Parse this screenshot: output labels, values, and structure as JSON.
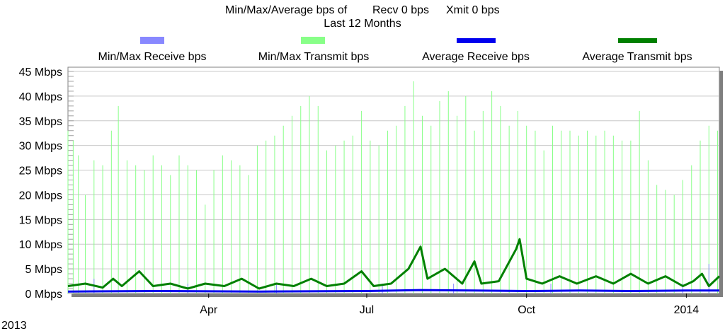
{
  "chart_data": {
    "type": "line",
    "title_line1_prefix": "Min/Max/Average bps of",
    "title_line1_recv": "Recv 0 bps",
    "title_line1_xmit": "Xmit 0 bps",
    "title_line2": "Last 12 Months",
    "legend": [
      {
        "label": "Min/Max Receive bps",
        "color": "#8888ff"
      },
      {
        "label": "Min/Max Transmit bps",
        "color": "#88ff88"
      },
      {
        "label": "Average Receive bps",
        "color": "#0000ee"
      },
      {
        "label": "Average Transmit bps",
        "color": "#008000"
      }
    ],
    "y_tick_labels": [
      "0 Mbps",
      "5 Mbps",
      "10 Mbps",
      "15 Mbps",
      "20 Mbps",
      "25 Mbps",
      "30 Mbps",
      "35 Mbps",
      "40 Mbps",
      "45 Mbps"
    ],
    "y_ticks": [
      0,
      5,
      10,
      15,
      20,
      25,
      30,
      35,
      40,
      45
    ],
    "ylim": [
      0,
      45
    ],
    "y_unit": "Mbps",
    "xlim": [
      "2013-01-10",
      "2014-01-20"
    ],
    "x_ticks": [
      {
        "date": "2013-04-01",
        "label": "Apr"
      },
      {
        "date": "2013-07-01",
        "label": "Jul"
      },
      {
        "date": "2013-10-01",
        "label": "Oct"
      },
      {
        "date": "2014-01-01",
        "label": "2014"
      }
    ],
    "year_label": "2013",
    "grid": "horizontal",
    "legend_placement": "top",
    "series": [
      {
        "name": "Min/Max Transmit bps",
        "style": "spikes",
        "color": "#88ff88",
        "points": [
          [
            "2013-01-10",
            33
          ],
          [
            "2013-01-13",
            31
          ],
          [
            "2013-01-16",
            28
          ],
          [
            "2013-01-20",
            20
          ],
          [
            "2013-01-25",
            27
          ],
          [
            "2013-01-30",
            26
          ],
          [
            "2013-02-04",
            33
          ],
          [
            "2013-02-08",
            38
          ],
          [
            "2013-02-13",
            27
          ],
          [
            "2013-02-18",
            26
          ],
          [
            "2013-02-23",
            25
          ],
          [
            "2013-02-28",
            28
          ],
          [
            "2013-03-05",
            26
          ],
          [
            "2013-03-10",
            24
          ],
          [
            "2013-03-15",
            28
          ],
          [
            "2013-03-20",
            26
          ],
          [
            "2013-03-25",
            25
          ],
          [
            "2013-03-30",
            18
          ],
          [
            "2013-04-04",
            25
          ],
          [
            "2013-04-09",
            28
          ],
          [
            "2013-04-14",
            27
          ],
          [
            "2013-04-19",
            26
          ],
          [
            "2013-04-24",
            24
          ],
          [
            "2013-04-29",
            30
          ],
          [
            "2013-05-04",
            31
          ],
          [
            "2013-05-09",
            32
          ],
          [
            "2013-05-14",
            34
          ],
          [
            "2013-05-19",
            36
          ],
          [
            "2013-05-24",
            38
          ],
          [
            "2013-05-29",
            40
          ],
          [
            "2013-06-03",
            38
          ],
          [
            "2013-06-08",
            29
          ],
          [
            "2013-06-13",
            30
          ],
          [
            "2013-06-18",
            31
          ],
          [
            "2013-06-23",
            32
          ],
          [
            "2013-06-28",
            37
          ],
          [
            "2013-07-03",
            31
          ],
          [
            "2013-07-08",
            30
          ],
          [
            "2013-07-13",
            33
          ],
          [
            "2013-07-18",
            34
          ],
          [
            "2013-07-23",
            38
          ],
          [
            "2013-07-28",
            43
          ],
          [
            "2013-08-02",
            36
          ],
          [
            "2013-08-07",
            34
          ],
          [
            "2013-08-12",
            39
          ],
          [
            "2013-08-17",
            41
          ],
          [
            "2013-08-22",
            36
          ],
          [
            "2013-08-27",
            40
          ],
          [
            "2013-09-01",
            33
          ],
          [
            "2013-09-06",
            37
          ],
          [
            "2013-09-11",
            41
          ],
          [
            "2013-09-16",
            38
          ],
          [
            "2013-09-21",
            34
          ],
          [
            "2013-09-26",
            37
          ],
          [
            "2013-10-01",
            34
          ],
          [
            "2013-10-06",
            33
          ],
          [
            "2013-10-11",
            29
          ],
          [
            "2013-10-16",
            34
          ],
          [
            "2013-10-21",
            33
          ],
          [
            "2013-10-26",
            33
          ],
          [
            "2013-10-31",
            32
          ],
          [
            "2013-11-05",
            33
          ],
          [
            "2013-11-10",
            32
          ],
          [
            "2013-11-15",
            33
          ],
          [
            "2013-11-20",
            32
          ],
          [
            "2013-11-25",
            31
          ],
          [
            "2013-11-30",
            31
          ],
          [
            "2013-12-05",
            37
          ],
          [
            "2013-12-10",
            27
          ],
          [
            "2013-12-15",
            22
          ],
          [
            "2013-12-20",
            21
          ],
          [
            "2013-12-25",
            20
          ],
          [
            "2013-12-30",
            23
          ],
          [
            "2014-01-04",
            26
          ],
          [
            "2014-01-09",
            31
          ],
          [
            "2014-01-14",
            34
          ],
          [
            "2014-01-19",
            33
          ]
        ]
      },
      {
        "name": "Min/Max Receive bps",
        "style": "spikes",
        "color": "#8888ff",
        "points": [
          [
            "2013-01-25",
            3
          ],
          [
            "2013-03-20",
            2
          ],
          [
            "2013-05-10",
            2
          ],
          [
            "2013-07-10",
            2
          ],
          [
            "2013-08-20",
            2
          ],
          [
            "2013-10-15",
            2
          ],
          [
            "2013-12-30",
            2
          ],
          [
            "2014-01-14",
            6
          ]
        ]
      },
      {
        "name": "Average Transmit bps",
        "style": "line",
        "color": "#008000",
        "points": [
          [
            "2013-01-10",
            1.5
          ],
          [
            "2013-01-20",
            2
          ],
          [
            "2013-01-30",
            1.2
          ],
          [
            "2013-02-05",
            3
          ],
          [
            "2013-02-10",
            1.5
          ],
          [
            "2013-02-20",
            4.5
          ],
          [
            "2013-02-28",
            1.5
          ],
          [
            "2013-03-10",
            2
          ],
          [
            "2013-03-20",
            1
          ],
          [
            "2013-03-30",
            2
          ],
          [
            "2013-04-10",
            1.5
          ],
          [
            "2013-04-20",
            3
          ],
          [
            "2013-04-30",
            1
          ],
          [
            "2013-05-10",
            2
          ],
          [
            "2013-05-20",
            1.5
          ],
          [
            "2013-05-30",
            3
          ],
          [
            "2013-06-08",
            1.5
          ],
          [
            "2013-06-18",
            2
          ],
          [
            "2013-06-28",
            4.5
          ],
          [
            "2013-07-05",
            1.5
          ],
          [
            "2013-07-15",
            2
          ],
          [
            "2013-07-25",
            5
          ],
          [
            "2013-08-01",
            9.5
          ],
          [
            "2013-08-05",
            3
          ],
          [
            "2013-08-15",
            5
          ],
          [
            "2013-08-25",
            2
          ],
          [
            "2013-09-01",
            6.5
          ],
          [
            "2013-09-05",
            2
          ],
          [
            "2013-09-15",
            2.5
          ],
          [
            "2013-09-25",
            9
          ],
          [
            "2013-09-27",
            11
          ],
          [
            "2013-10-01",
            3
          ],
          [
            "2013-10-10",
            2
          ],
          [
            "2013-10-20",
            3.5
          ],
          [
            "2013-10-30",
            2
          ],
          [
            "2013-11-10",
            3.5
          ],
          [
            "2013-11-20",
            2
          ],
          [
            "2013-11-30",
            4
          ],
          [
            "2013-12-10",
            2
          ],
          [
            "2013-12-20",
            3.5
          ],
          [
            "2013-12-30",
            1.5
          ],
          [
            "2014-01-05",
            2.5
          ],
          [
            "2014-01-10",
            4
          ],
          [
            "2014-01-14",
            1.5
          ],
          [
            "2014-01-20",
            3.5
          ]
        ]
      },
      {
        "name": "Average Receive bps",
        "style": "line",
        "color": "#0000ee",
        "points": [
          [
            "2013-01-10",
            0.4
          ],
          [
            "2013-03-01",
            0.5
          ],
          [
            "2013-05-01",
            0.4
          ],
          [
            "2013-07-01",
            0.5
          ],
          [
            "2013-08-01",
            0.7
          ],
          [
            "2013-09-01",
            0.6
          ],
          [
            "2013-10-01",
            0.5
          ],
          [
            "2013-11-01",
            0.6
          ],
          [
            "2013-12-01",
            0.5
          ],
          [
            "2014-01-01",
            0.6
          ],
          [
            "2014-01-20",
            0.6
          ]
        ]
      }
    ]
  }
}
